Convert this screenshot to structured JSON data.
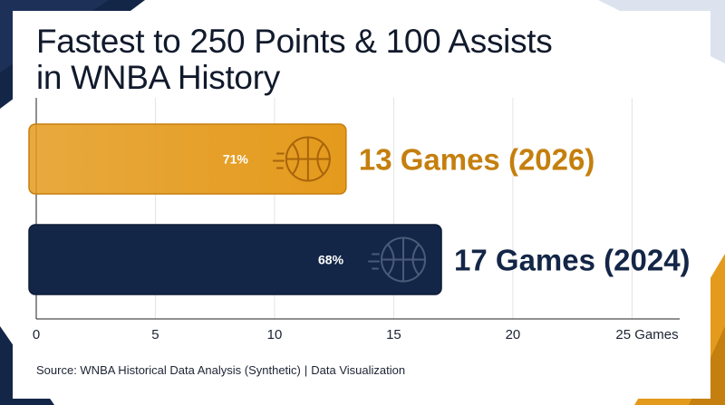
{
  "title_lines": [
    "Fastest to 250 Points & 100 Assists",
    "in WNBA History"
  ],
  "source": {
    "left": "Source: WNBA Historical Data Analysis (Synthetic)",
    "right": "Data Visualization"
  },
  "chart_data": {
    "type": "bar",
    "orientation": "horizontal",
    "title": "Fastest to 250 Points & 100 Assists in WNBA History",
    "xlabel": "Games",
    "xlim": [
      0,
      27
    ],
    "xticks": [
      0,
      5,
      10,
      15,
      20,
      25
    ],
    "xtick_labels": [
      "0",
      "5",
      "10",
      "15",
      "20",
      "25 Games"
    ],
    "grid": "vertical",
    "bars": [
      {
        "value": 13,
        "label": "13 Games (2026)",
        "pct_label": "71%",
        "color": "#e49a1c",
        "text_color": "#c57f0e",
        "icon": "basketball-icon"
      },
      {
        "value": 17,
        "label": "17 Games (2024)",
        "pct_label": "68%",
        "color": "#142647",
        "text_color": "#142647",
        "icon": "basketball-icon"
      }
    ]
  },
  "colors": {
    "navy": "#142647",
    "gold": "#e49a1c",
    "grid": "#e3e3e3"
  }
}
